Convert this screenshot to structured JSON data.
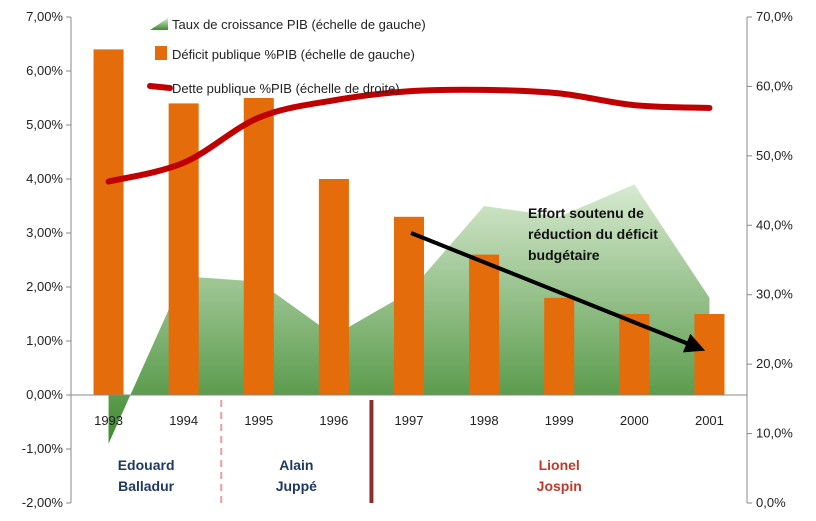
{
  "chart_data": {
    "type": "bar",
    "categories": [
      "1993",
      "1994",
      "1995",
      "1996",
      "1997",
      "1998",
      "1999",
      "2000",
      "2001"
    ],
    "series": [
      {
        "name": "Taux de croissance PIB (échelle de gauche)",
        "type": "area",
        "axis": "left",
        "color": "#4e8a3a",
        "values": [
          -0.9,
          2.2,
          2.1,
          1.1,
          1.9,
          3.5,
          3.3,
          3.9,
          1.8
        ]
      },
      {
        "name": "Déficit publique %PIB (échelle de gauche)",
        "type": "bar",
        "axis": "left",
        "color": "#e46c0a",
        "values": [
          6.4,
          5.4,
          5.5,
          4.0,
          3.3,
          2.6,
          1.8,
          1.5,
          1.5
        ]
      },
      {
        "name": "Dette publique %PIB (échelle de droite)",
        "type": "line",
        "axis": "right",
        "color": "#c00000",
        "values": [
          46.3,
          49.0,
          55.5,
          58.0,
          59.3,
          59.5,
          59.0,
          57.3,
          56.9
        ]
      }
    ],
    "y_left": {
      "min": -2,
      "max": 7,
      "step": 1,
      "ticks": [
        "-2,00%",
        "-1,00%",
        "0,00%",
        "1,00%",
        "2,00%",
        "3,00%",
        "4,00%",
        "5,00%",
        "6,00%",
        "7,00%"
      ]
    },
    "y_right": {
      "min": 0,
      "max": 70,
      "step": 10,
      "ticks": [
        "0,0%",
        "10,0%",
        "20,0%",
        "30,0%",
        "40,0%",
        "50,0%",
        "60,0%",
        "70,0%"
      ]
    },
    "annotation": {
      "lines": [
        "Effort soutenu de",
        "réduction du déficit",
        "budgétaire"
      ],
      "arrow_from": "1997",
      "arrow_to": "2001"
    },
    "periods": [
      {
        "lines": [
          "Edouard",
          "Balladur"
        ],
        "color": "#1f3864",
        "start": "1993",
        "end": "1994"
      },
      {
        "lines": [
          "Alain",
          "Juppé"
        ],
        "color": "#1f3864",
        "start": "1995",
        "end": "1996"
      },
      {
        "lines": [
          "Lionel",
          "Jospin"
        ],
        "color": "#c0392b",
        "start": "1997",
        "end": "2001"
      }
    ],
    "dividers": [
      {
        "after": "1994",
        "style": "dashed",
        "color": "#e8a0a0"
      },
      {
        "after": "1996",
        "style": "solid",
        "color": "#8b2e2e"
      }
    ],
    "grid": false,
    "legend_position": "top"
  }
}
